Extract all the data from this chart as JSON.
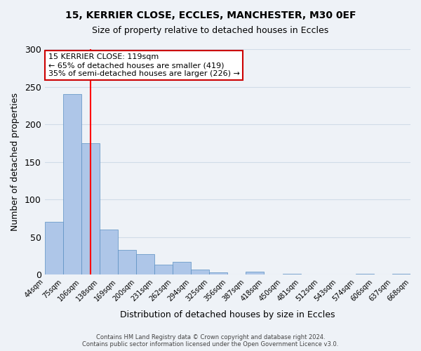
{
  "title1": "15, KERRIER CLOSE, ECCLES, MANCHESTER, M30 0EF",
  "title2": "Size of property relative to detached houses in Eccles",
  "xlabel": "Distribution of detached houses by size in Eccles",
  "ylabel": "Number of detached properties",
  "bin_left_edges": [
    "44sqm",
    "75sqm",
    "106sqm",
    "138sqm",
    "169sqm",
    "200sqm",
    "231sqm",
    "262sqm",
    "294sqm",
    "325sqm",
    "356sqm",
    "387sqm",
    "418sqm",
    "450sqm",
    "481sqm",
    "512sqm",
    "543sqm",
    "574sqm",
    "606sqm",
    "637sqm",
    "668sqm"
  ],
  "bar_values": [
    70,
    240,
    175,
    60,
    33,
    27,
    13,
    17,
    7,
    3,
    0,
    4,
    0,
    1,
    0,
    0,
    0,
    1,
    0,
    1
  ],
  "bar_color": "#aec6e8",
  "bar_edge_color": "#5a8fc2",
  "grid_color": "#d0dce8",
  "background_color": "#eef2f7",
  "red_line_x": 2.5,
  "annotation_line1": "15 KERRIER CLOSE: 119sqm",
  "annotation_line2": "← 65% of detached houses are smaller (419)",
  "annotation_line3": "35% of semi-detached houses are larger (226) →",
  "annotation_box_color": "#ffffff",
  "annotation_box_edge": "#cc0000",
  "ylim": [
    0,
    300
  ],
  "yticks": [
    0,
    50,
    100,
    150,
    200,
    250,
    300
  ],
  "footer1": "Contains HM Land Registry data © Crown copyright and database right 2024.",
  "footer2": "Contains public sector information licensed under the Open Government Licence v3.0."
}
